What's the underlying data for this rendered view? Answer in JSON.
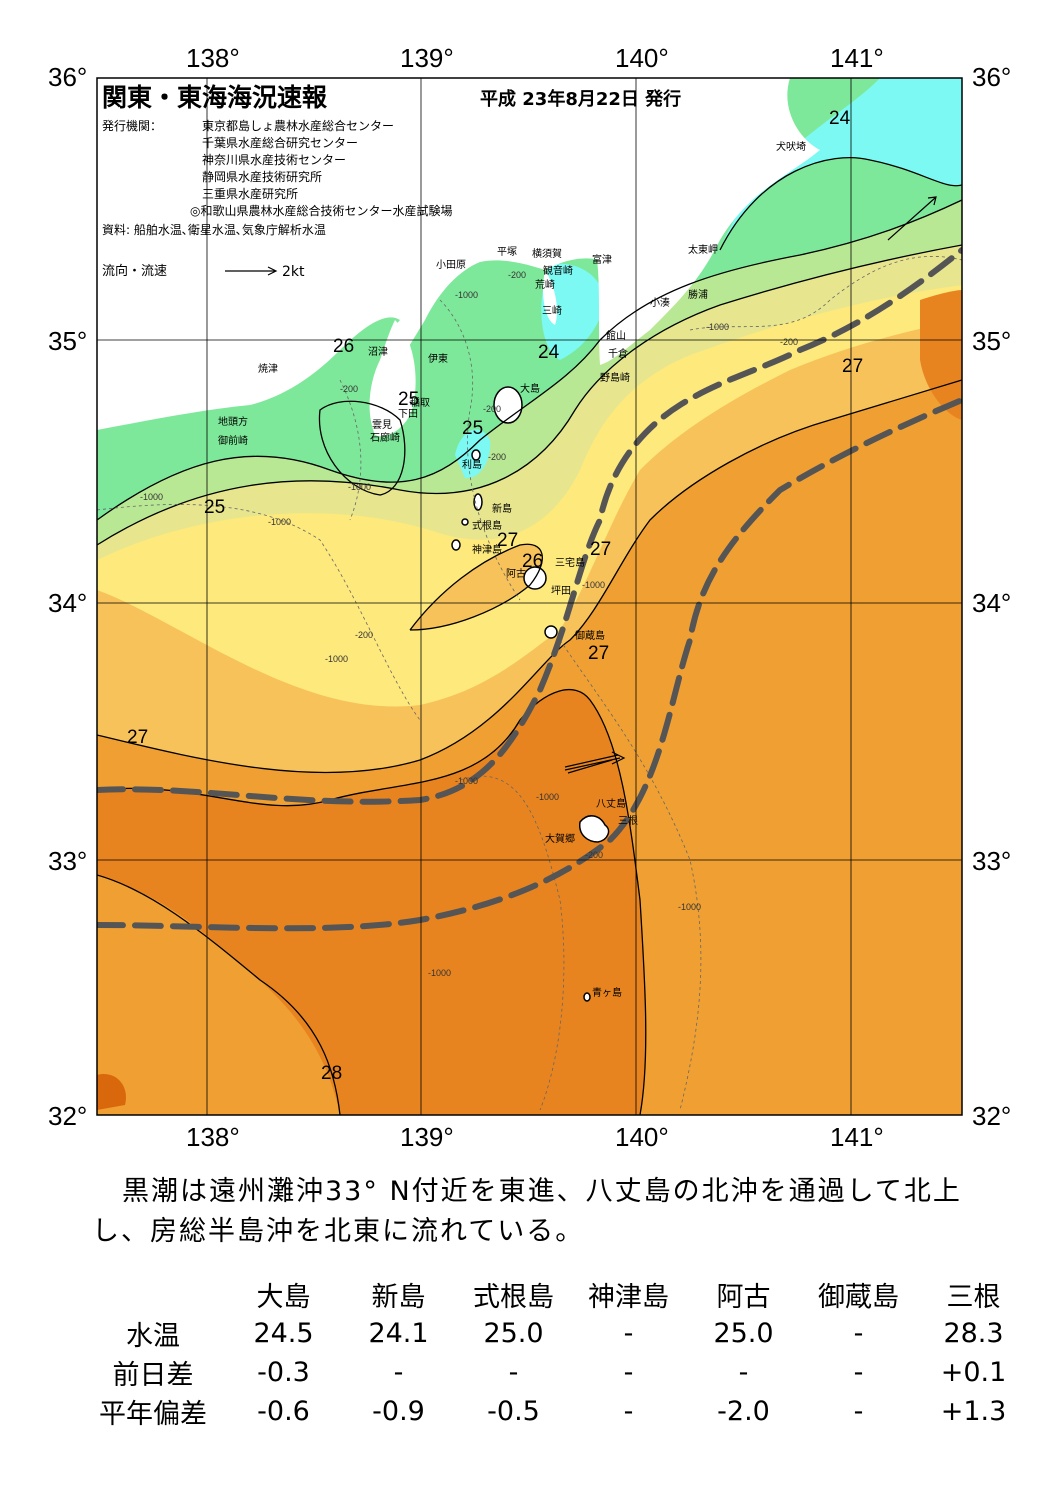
{
  "map": {
    "title": "関東・東海海況速報",
    "issue_date": "平成 23年8月22日 発行",
    "issuers_label": "発行機関：",
    "issuers": [
      "東京都島しょ農林水産総合センター",
      "千葉県水産総合研究センター",
      "神奈川県水産技術センター",
      "静岡県水産技術研究所",
      "三重県水産研究所",
      "◎和歌山県農林水産総合技術センター水産試験場"
    ],
    "source": "資料: 船舶水温､衛星水温､気象庁解析水温",
    "current_legend": "流向・流速",
    "current_scale": "2kt",
    "lon_ticks": [
      "138°",
      "139°",
      "140°",
      "141°"
    ],
    "lat_ticks": [
      "36°",
      "35°",
      "34°",
      "33°",
      "32°"
    ],
    "isotherm_labels": [
      "24",
      "24",
      "26",
      "25",
      "25",
      "25",
      "27",
      "27",
      "26",
      "27",
      "27",
      "27",
      "28"
    ],
    "depth_labels": [
      "-200",
      "-200",
      "-1000",
      "-200",
      "-200",
      "-1000",
      "-1000",
      "-1000",
      "-200",
      "-1000",
      "-1000",
      "-200",
      "-1000",
      "-1000",
      "-1000",
      "-1000",
      "-200",
      "-1000"
    ],
    "places": [
      "犬吠埼",
      "太東岬",
      "勝浦",
      "小湊",
      "富津",
      "館山",
      "千倉",
      "野島崎",
      "平塚",
      "横須賀",
      "観音崎",
      "荒崎",
      "三崎",
      "小田原",
      "沼津",
      "伊東",
      "焼津",
      "稲取",
      "下田",
      "雲見",
      "石廊崎",
      "地頭方",
      "御前崎",
      "大島",
      "利島",
      "新島",
      "式根島",
      "神津島",
      "三宅島",
      "阿古",
      "坪田",
      "御蔵島",
      "八丈島",
      "三根",
      "大賀郷",
      "青ヶ島"
    ],
    "colors": {
      "t24": "#7cf9f2",
      "t25": "#7ee89a",
      "t26": "#b9e894",
      "t26b": "#e7e58e",
      "t27": "#fde97c",
      "t27b": "#f7c25a",
      "t28": "#f0a032",
      "t28b": "#e88420",
      "t29": "#d9680c",
      "land": "#ffffff",
      "kuroshio": "#555555"
    }
  },
  "summary": "黒潮は遠州灘沖33° N付近を東進、八丈島の北沖を通過して北上し、房総半島沖を北東に流れている。",
  "table": {
    "stations": [
      "大島",
      "新島",
      "式根島",
      "神津島",
      "阿古",
      "御蔵島",
      "三根"
    ],
    "rows": [
      {
        "label": "水温",
        "values": [
          "24.5",
          "24.1",
          "25.0",
          "-",
          "25.0",
          "-",
          "28.3"
        ]
      },
      {
        "label": "前日差",
        "values": [
          "-0.3",
          "-",
          "-",
          "-",
          "-",
          "-",
          "+0.1"
        ]
      },
      {
        "label": "平年偏差",
        "values": [
          "-0.6",
          "-0.9",
          "-0.5",
          "-",
          "-2.0",
          "-",
          "+1.3"
        ]
      }
    ]
  }
}
